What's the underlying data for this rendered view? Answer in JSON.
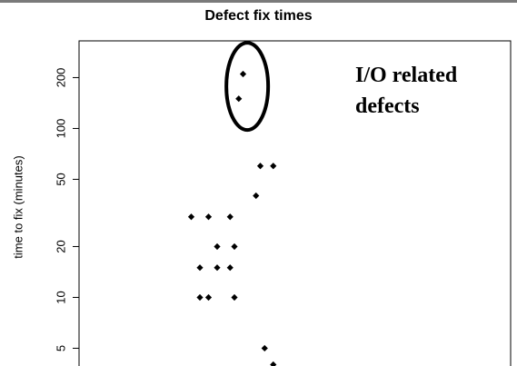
{
  "chart_data": {
    "type": "scatter",
    "title": "Defect fix times",
    "xlabel": "",
    "ylabel": "time to fix (minutes)",
    "y_scale": "log",
    "ylim": [
      3.6,
      330
    ],
    "xlim": [
      0,
      1
    ],
    "y_ticks": [
      5,
      10,
      20,
      50,
      100,
      200
    ],
    "y_tick_labels": [
      "5",
      "10",
      "20",
      "50",
      "100",
      "200"
    ],
    "grid": false,
    "point_color": "#000000",
    "annotation": {
      "lines": [
        "I/O related",
        "defects"
      ],
      "circled_y_values": [
        210,
        150
      ]
    },
    "points": [
      {
        "x": 0.38,
        "y": 210
      },
      {
        "x": 0.37,
        "y": 150
      },
      {
        "x": 0.42,
        "y": 60
      },
      {
        "x": 0.45,
        "y": 60
      },
      {
        "x": 0.41,
        "y": 40
      },
      {
        "x": 0.26,
        "y": 30
      },
      {
        "x": 0.3,
        "y": 30
      },
      {
        "x": 0.35,
        "y": 30
      },
      {
        "x": 0.32,
        "y": 20
      },
      {
        "x": 0.36,
        "y": 20
      },
      {
        "x": 0.28,
        "y": 15
      },
      {
        "x": 0.32,
        "y": 15
      },
      {
        "x": 0.35,
        "y": 15
      },
      {
        "x": 0.28,
        "y": 10
      },
      {
        "x": 0.3,
        "y": 10
      },
      {
        "x": 0.36,
        "y": 10
      },
      {
        "x": 0.43,
        "y": 5
      },
      {
        "x": 0.45,
        "y": 4
      }
    ]
  }
}
